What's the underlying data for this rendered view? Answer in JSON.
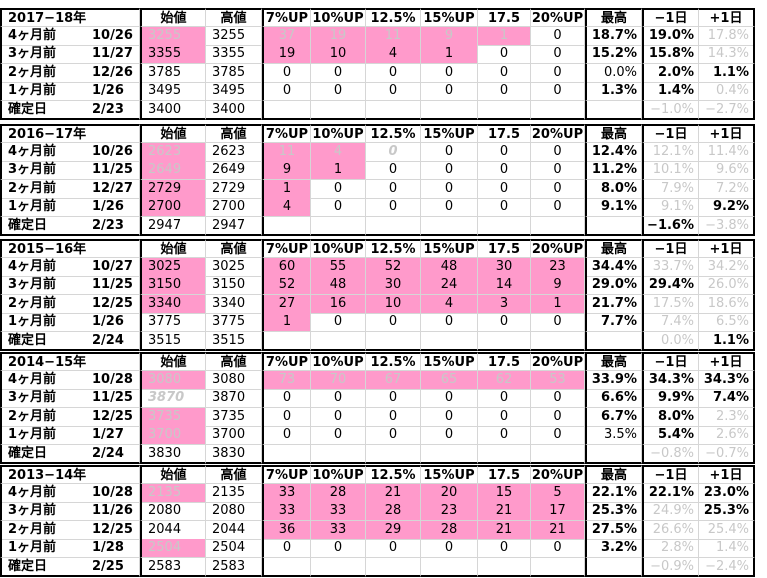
{
  "blocks": [
    {
      "title": "2017−18年",
      "headers": [
        "始値",
        "高値",
        "7%UP",
        "10%UP",
        "12.5%",
        "15%UP",
        "17.5",
        "20%UP",
        "最高",
        "−1日",
        "+1日"
      ],
      "rows": [
        {
          "label": "4ヶ月前",
          "date": "10/26",
          "open": "3255",
          "high": "3255",
          "up": [
            "37",
            "19",
            "11",
            "9",
            "1",
            "0"
          ],
          "max": "18.7%",
          "m1": "19.0%",
          "p1": "17.8%"
        },
        {
          "label": "3ヶ月前",
          "date": "11/27",
          "open": "3355",
          "high": "3355",
          "up": [
            "19",
            "10",
            "4",
            "1",
            "0",
            "0"
          ],
          "max": "15.2%",
          "m1": "15.8%",
          "p1": "14.3%"
        },
        {
          "label": "2ヶ月前",
          "date": "12/26",
          "open": "3785",
          "high": "3785",
          "up": [
            "0",
            "0",
            "0",
            "0",
            "0",
            "0"
          ],
          "max": "0.0%",
          "m1": "2.0%",
          "p1": "1.1%"
        },
        {
          "label": "1ヶ月前",
          "date": "1/26",
          "open": "3495",
          "high": "3495",
          "up": [
            "0",
            "0",
            "0",
            "0",
            "0",
            "0"
          ],
          "max": "1.3%",
          "m1": "1.4%",
          "p1": "0.4%"
        },
        {
          "label": "確定日",
          "date": "2/23",
          "open": "3400",
          "high": "3400",
          "up": [
            "",
            "",
            "",
            "",
            "",
            ""
          ],
          "max": "",
          "m1": "−1.0%",
          "p1": "−2.7%"
        }
      ]
    },
    {
      "title": "2016−17年",
      "headers": [
        "始値",
        "高値",
        "7%UP",
        "10%UP",
        "12.5%",
        "15%UP",
        "17.5",
        "20%UP",
        "最高",
        "−1日",
        "+1日"
      ],
      "rows": [
        {
          "label": "4ヶ月前",
          "date": "10/26",
          "open": "2623",
          "high": "2623",
          "up": [
            "11",
            "4",
            "0",
            "0",
            "0",
            "0"
          ],
          "max": "12.4%",
          "m1": "12.1%",
          "p1": "11.4%"
        },
        {
          "label": "3ヶ月前",
          "date": "11/25",
          "open": "2649",
          "high": "2649",
          "up": [
            "9",
            "1",
            "0",
            "0",
            "0",
            "0"
          ],
          "max": "11.2%",
          "m1": "10.1%",
          "p1": "9.6%"
        },
        {
          "label": "2ヶ月前",
          "date": "12/27",
          "open": "2729",
          "high": "2729",
          "up": [
            "1",
            "0",
            "0",
            "0",
            "0",
            "0"
          ],
          "max": "8.0%",
          "m1": "7.9%",
          "p1": "7.2%"
        },
        {
          "label": "1ヶ月前",
          "date": "1/26",
          "open": "2700",
          "high": "2700",
          "up": [
            "4",
            "0",
            "0",
            "0",
            "0",
            "0"
          ],
          "max": "9.1%",
          "m1": "9.1%",
          "p1": "9.2%"
        },
        {
          "label": "確定日",
          "date": "2/23",
          "open": "2947",
          "high": "2947",
          "up": [
            "",
            "",
            "",
            "",
            "",
            ""
          ],
          "max": "",
          "m1": "−1.6%",
          "p1": "−3.8%"
        }
      ]
    },
    {
      "title": "2015−16年",
      "headers": [
        "始値",
        "高値",
        "7%UP",
        "10%UP",
        "12.5%",
        "15%UP",
        "17.5",
        "20%UP",
        "最高",
        "−1日",
        "+1日"
      ],
      "rows": [
        {
          "label": "4ヶ月前",
          "date": "10/27",
          "open": "3025",
          "high": "3025",
          "up": [
            "60",
            "55",
            "52",
            "48",
            "30",
            "23"
          ],
          "max": "34.4%",
          "m1": "33.7%",
          "p1": "34.2%"
        },
        {
          "label": "3ヶ月前",
          "date": "11/25",
          "open": "3150",
          "high": "3150",
          "up": [
            "52",
            "48",
            "30",
            "24",
            "14",
            "9"
          ],
          "max": "29.0%",
          "m1": "29.4%",
          "p1": "26.0%"
        },
        {
          "label": "2ヶ月前",
          "date": "12/25",
          "open": "3340",
          "high": "3340",
          "up": [
            "27",
            "16",
            "10",
            "4",
            "3",
            "1"
          ],
          "max": "21.7%",
          "m1": "17.5%",
          "p1": "18.6%"
        },
        {
          "label": "1ヶ月前",
          "date": "1/26",
          "open": "3775",
          "high": "3775",
          "up": [
            "1",
            "0",
            "0",
            "0",
            "0",
            "0"
          ],
          "max": "7.7%",
          "m1": "7.4%",
          "p1": "6.5%"
        },
        {
          "label": "確定日",
          "date": "2/24",
          "open": "3515",
          "high": "3515",
          "up": [
            "",
            "",
            "",
            "",
            "",
            ""
          ],
          "max": "",
          "m1": "0.0%",
          "p1": "1.1%"
        }
      ]
    },
    {
      "title": "2014−15年",
      "headers": [
        "始値",
        "高値",
        "7%UP",
        "10%UP",
        "12.5%",
        "15%UP",
        "17.5",
        "20%UP",
        "最高",
        "−1日",
        "+1日"
      ],
      "rows": [
        {
          "label": "4ヶ月前",
          "date": "10/28",
          "open": "3080",
          "high": "3080",
          "up": [
            "73",
            "70",
            "67",
            "65",
            "62",
            "53"
          ],
          "max": "33.9%",
          "m1": "34.3%",
          "p1": "34.3%"
        },
        {
          "label": "3ヶ月前",
          "date": "11/25",
          "open": "3870",
          "high": "3870",
          "up": [
            "0",
            "0",
            "0",
            "0",
            "0",
            "0"
          ],
          "max": "6.6%",
          "m1": "9.9%",
          "p1": "7.4%"
        },
        {
          "label": "2ヶ月前",
          "date": "12/25",
          "open": "3735",
          "high": "3735",
          "up": [
            "0",
            "0",
            "0",
            "0",
            "0",
            "0"
          ],
          "max": "6.7%",
          "m1": "8.0%",
          "p1": "2.3%"
        },
        {
          "label": "1ヶ月前",
          "date": "1/27",
          "open": "3700",
          "high": "3700",
          "up": [
            "0",
            "0",
            "0",
            "0",
            "0",
            "0"
          ],
          "max": "3.5%",
          "m1": "5.4%",
          "p1": "2.6%"
        },
        {
          "label": "確定日",
          "date": "2/24",
          "open": "3830",
          "high": "3830",
          "up": [
            "",
            "",
            "",
            "",
            "",
            ""
          ],
          "max": "",
          "m1": "−0.8%",
          "p1": "−0.7%"
        }
      ]
    },
    {
      "title": "2013−14年",
      "headers": [
        "始値",
        "高値",
        "7%UP",
        "10%UP",
        "12.5%",
        "15%UP",
        "17.5",
        "20%UP",
        "最高",
        "−1日",
        "+1日"
      ],
      "rows": [
        {
          "label": "4ヶ月前",
          "date": "10/28",
          "open": "2135",
          "high": "2135",
          "up": [
            "33",
            "28",
            "21",
            "20",
            "15",
            "5"
          ],
          "max": "22.1%",
          "m1": "22.1%",
          "p1": "23.0%"
        },
        {
          "label": "3ヶ月前",
          "date": "11/26",
          "open": "2080",
          "high": "2080",
          "up": [
            "33",
            "33",
            "28",
            "23",
            "21",
            "17"
          ],
          "max": "25.3%",
          "m1": "24.9%",
          "p1": "25.3%"
        },
        {
          "label": "2ヶ月前",
          "date": "12/25",
          "open": "2044",
          "high": "2044",
          "up": [
            "36",
            "33",
            "29",
            "28",
            "21",
            "21"
          ],
          "max": "27.5%",
          "m1": "26.6%",
          "p1": "25.4%"
        },
        {
          "label": "1ヶ月前",
          "date": "1/28",
          "open": "2504",
          "high": "2504",
          "up": [
            "0",
            "0",
            "0",
            "0",
            "0",
            "0"
          ],
          "max": "3.2%",
          "m1": "2.8%",
          "p1": "1.4%"
        },
        {
          "label": "確定日",
          "date": "2/25",
          "open": "2583",
          "high": "2583",
          "up": [
            "",
            "",
            "",
            "",
            "",
            ""
          ],
          "max": "",
          "m1": "−0.9%",
          "p1": "−2.4%"
        }
      ]
    }
  ],
  "colors": {
    "highlight": "#ff9acb",
    "muted_text": "#c8c8c8",
    "grid": "#d6d6d6"
  }
}
